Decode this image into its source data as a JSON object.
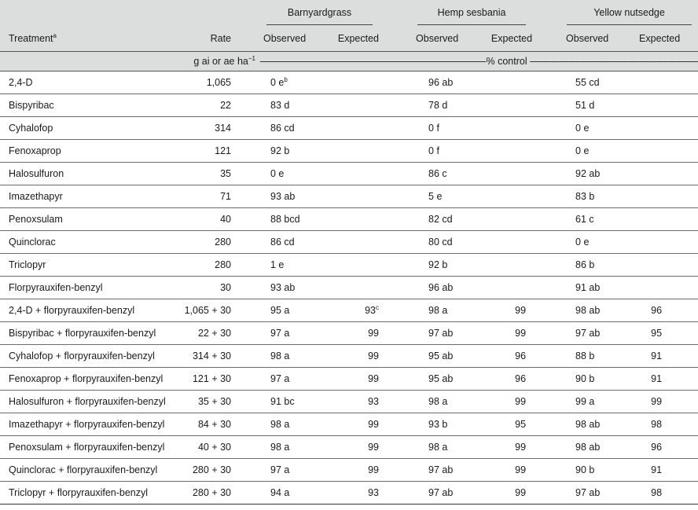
{
  "header": {
    "groups": [
      "Barnyardgrass",
      "Hemp sesbania",
      "Yellow nutsedge"
    ],
    "treatment": "Treatment",
    "treatment_sup": "a",
    "rate": "Rate",
    "observed": "Observed",
    "expected": "Expected",
    "units": "g ai or ae ha",
    "units_sup": "−1",
    "control_line": "———————————————————————% control ————————————————————————"
  },
  "rows": [
    {
      "t": "2,4-D",
      "r": "1,065",
      "bo": "0 e",
      "bo_sup": "b",
      "be": "",
      "be_sup": "",
      "ho": "96 ab",
      "he": "",
      "yo": "55 cd",
      "ye": ""
    },
    {
      "t": "Bispyribac",
      "r": "22",
      "bo": "83 d",
      "bo_sup": "",
      "be": "",
      "be_sup": "",
      "ho": "78 d",
      "he": "",
      "yo": "51 d",
      "ye": ""
    },
    {
      "t": "Cyhalofop",
      "r": "314",
      "bo": "86 cd",
      "bo_sup": "",
      "be": "",
      "be_sup": "",
      "ho": "0 f",
      "he": "",
      "yo": "0 e",
      "ye": ""
    },
    {
      "t": "Fenoxaprop",
      "r": "121",
      "bo": "92 b",
      "bo_sup": "",
      "be": "",
      "be_sup": "",
      "ho": "0 f",
      "he": "",
      "yo": "0 e",
      "ye": ""
    },
    {
      "t": "Halosulfuron",
      "r": "35",
      "bo": "0 e",
      "bo_sup": "",
      "be": "",
      "be_sup": "",
      "ho": "86 c",
      "he": "",
      "yo": "92 ab",
      "ye": ""
    },
    {
      "t": "Imazethapyr",
      "r": "71",
      "bo": "93 ab",
      "bo_sup": "",
      "be": "",
      "be_sup": "",
      "ho": "5 e",
      "he": "",
      "yo": "83 b",
      "ye": ""
    },
    {
      "t": "Penoxsulam",
      "r": "40",
      "bo": "88 bcd",
      "bo_sup": "",
      "be": "",
      "be_sup": "",
      "ho": "82 cd",
      "he": "",
      "yo": "61 c",
      "ye": ""
    },
    {
      "t": "Quinclorac",
      "r": "280",
      "bo": "86 cd",
      "bo_sup": "",
      "be": "",
      "be_sup": "",
      "ho": "80 cd",
      "he": "",
      "yo": "0 e",
      "ye": ""
    },
    {
      "t": "Triclopyr",
      "r": "280",
      "bo": "1 e",
      "bo_sup": "",
      "be": "",
      "be_sup": "",
      "ho": "92 b",
      "he": "",
      "yo": "86 b",
      "ye": ""
    },
    {
      "t": "Florpyrauxifen-benzyl",
      "r": "30",
      "bo": "93 ab",
      "bo_sup": "",
      "be": "",
      "be_sup": "",
      "ho": "96 ab",
      "he": "",
      "yo": "91 ab",
      "ye": ""
    },
    {
      "t": "2,4-D  +  florpyrauxifen-benzyl",
      "r": "1,065 + 30",
      "bo": "95 a",
      "bo_sup": "",
      "be": "93",
      "be_sup": "c",
      "ho": "98 a",
      "he": "99",
      "yo": "98 ab",
      "ye": "96"
    },
    {
      "t": "Bispyribac + florpyrauxifen-benzyl",
      "r": "22 + 30",
      "bo": "97 a",
      "bo_sup": "",
      "be": "99",
      "be_sup": "",
      "ho": "97 ab",
      "he": "99",
      "yo": "97 ab",
      "ye": "95"
    },
    {
      "t": "Cyhalofop +  florpyrauxifen-benzyl",
      "r": "314 + 30",
      "bo": "98 a",
      "bo_sup": "",
      "be": "99",
      "be_sup": "",
      "ho": "95 ab",
      "he": "96",
      "yo": "88 b",
      "ye": "91"
    },
    {
      "t": "Fenoxaprop +  florpyrauxifen-benzyl",
      "r": "121 + 30",
      "bo": "97 a",
      "bo_sup": "",
      "be": "99",
      "be_sup": "",
      "ho": "95 ab",
      "he": "96",
      "yo": "90 b",
      "ye": "91"
    },
    {
      "t": "Halosulfuron +  florpyrauxifen-benzyl",
      "r": "35 + 30",
      "bo": "91 bc",
      "bo_sup": "",
      "be": "93",
      "be_sup": "",
      "ho": "98 a",
      "he": "99",
      "yo": "99 a",
      "ye": "99"
    },
    {
      "t": "Imazethapyr +  florpyrauxifen-benzyl",
      "r": "84 + 30",
      "bo": "98 a",
      "bo_sup": "",
      "be": "99",
      "be_sup": "",
      "ho": "93 b",
      "he": "95",
      "yo": "98 ab",
      "ye": "98"
    },
    {
      "t": "Penoxsulam +  florpyrauxifen-benzyl",
      "r": "40 + 30",
      "bo": "98 a",
      "bo_sup": "",
      "be": "99",
      "be_sup": "",
      "ho": "98 a",
      "he": "99",
      "yo": "98 ab",
      "ye": "96"
    },
    {
      "t": "Quinclorac +  florpyrauxifen-benzyl",
      "r": "280 + 30",
      "bo": "97 a",
      "bo_sup": "",
      "be": "99",
      "be_sup": "",
      "ho": "97 ab",
      "he": "99",
      "yo": "90 b",
      "ye": "91"
    },
    {
      "t": "Triclopyr +  florpyrauxifen-benzyl",
      "r": "280 + 30",
      "bo": "94 a",
      "bo_sup": "",
      "be": "93",
      "be_sup": "",
      "ho": "97 ab",
      "he": "99",
      "yo": "97 ab",
      "ye": "98"
    }
  ]
}
